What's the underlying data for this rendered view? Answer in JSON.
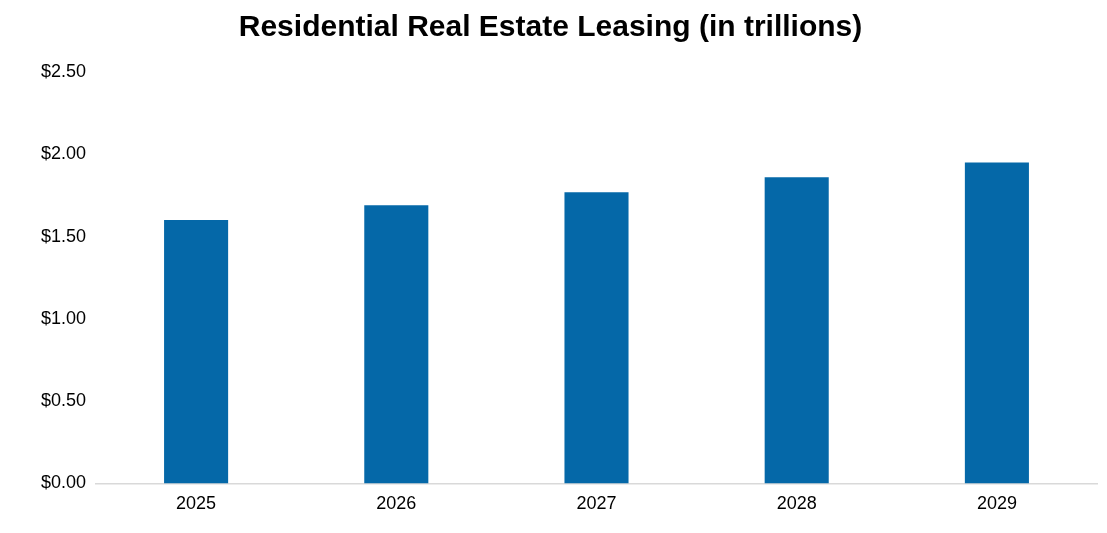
{
  "chart_data": {
    "type": "bar",
    "title": "Residential Real Estate Leasing (in trillions)",
    "categories": [
      "2025",
      "2026",
      "2027",
      "2028",
      "2029"
    ],
    "values": [
      1.6,
      1.69,
      1.77,
      1.86,
      1.95
    ],
    "color": "#0568a8",
    "ylim": [
      0,
      2.5
    ],
    "yticks": [
      {
        "value": 0,
        "label": "$0.00"
      },
      {
        "value": 0.5,
        "label": "$0.50"
      },
      {
        "value": 1,
        "label": "$1.00"
      },
      {
        "value": 1.5,
        "label": "$1.50"
      },
      {
        "value": 2,
        "label": "$2.00"
      },
      {
        "value": 2.5,
        "label": "$2.50"
      }
    ],
    "grid": false
  }
}
